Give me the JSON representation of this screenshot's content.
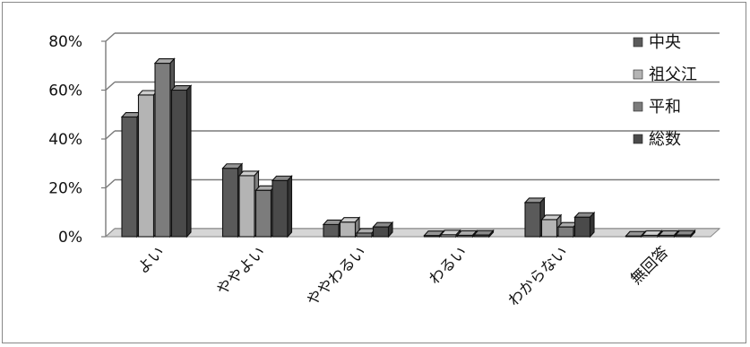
{
  "chart_data": {
    "type": "bar",
    "style": "3d-clustered-column",
    "categories": [
      "よい",
      "ややよい",
      "ややわるい",
      "わるい",
      "わからない",
      "無回答"
    ],
    "series": [
      {
        "name": "中央",
        "values": [
          49,
          28,
          5,
          0.5,
          14,
          0.3
        ],
        "color": "#5a5a5a"
      },
      {
        "name": "祖父江",
        "values": [
          58,
          25,
          6,
          0.8,
          7,
          0.6
        ],
        "color": "#b4b4b4"
      },
      {
        "name": "平和",
        "values": [
          71,
          19,
          1.5,
          0.6,
          4,
          0.6
        ],
        "color": "#7c7c7c"
      },
      {
        "name": "総数",
        "values": [
          60,
          23,
          4,
          0.7,
          8,
          0.7
        ],
        "color": "#4a4a4a"
      }
    ],
    "ylim": [
      0,
      80
    ],
    "yticks": [
      "0%",
      "20%",
      "40%",
      "60%",
      "80%"
    ],
    "grid": true,
    "legend": "right"
  }
}
